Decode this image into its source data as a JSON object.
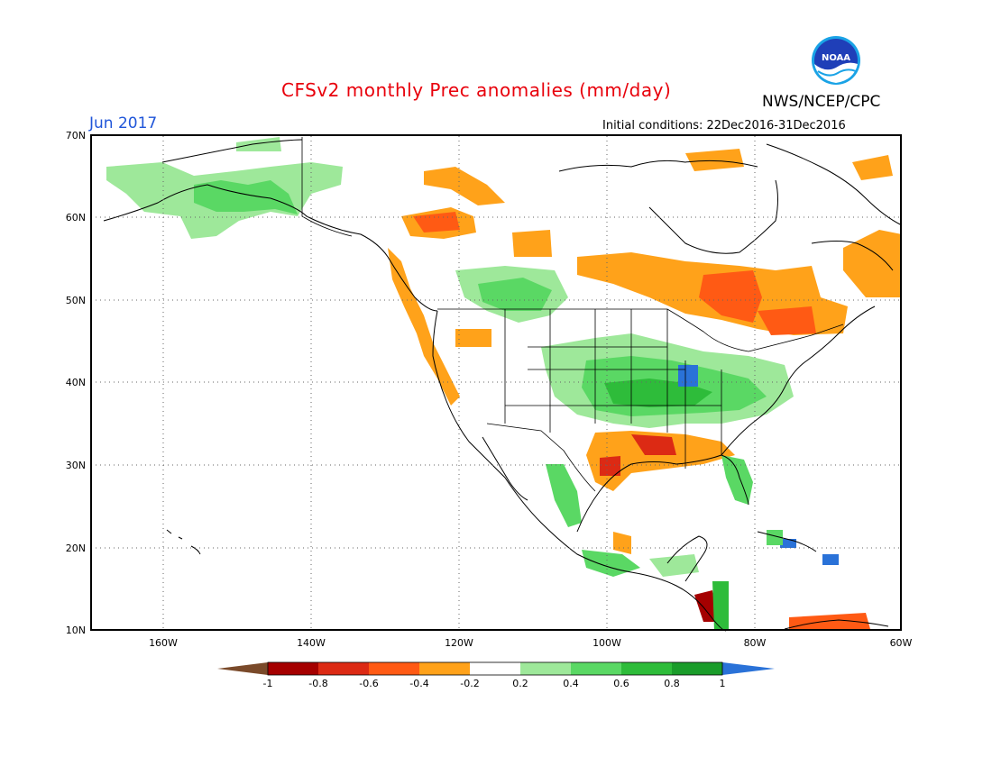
{
  "header": {
    "title": "CFSv2 monthly Prec anomalies (mm/day)",
    "agency": "NWS/NCEP/CPC",
    "month": "Jun 2017",
    "initial_conditions": "Initial conditions: 22Dec2016-31Dec2016"
  },
  "logo": {
    "text": "NOAA",
    "icon": "noaa-logo-icon"
  },
  "map": {
    "lat_labels": [
      "70N",
      "60N",
      "50N",
      "40N",
      "30N",
      "20N",
      "10N"
    ],
    "lon_labels": [
      "160W",
      "140W",
      "120W",
      "100W",
      "80W",
      "60W"
    ]
  },
  "legend": {
    "labels": [
      "-1",
      "-0.8",
      "-0.6",
      "-0.4",
      "-0.2",
      "0.2",
      "0.4",
      "0.6",
      "0.8",
      "1"
    ],
    "colors": {
      "below_min": "#7a4a2a",
      "bins": [
        "#a50000",
        "#dc2a14",
        "#ff5a14",
        "#ffa21a",
        "#ffffff",
        "#9ee89a",
        "#5ad864",
        "#2ebc3a",
        "#1a9c2a"
      ],
      "above_max": "#2a72d8"
    }
  }
}
